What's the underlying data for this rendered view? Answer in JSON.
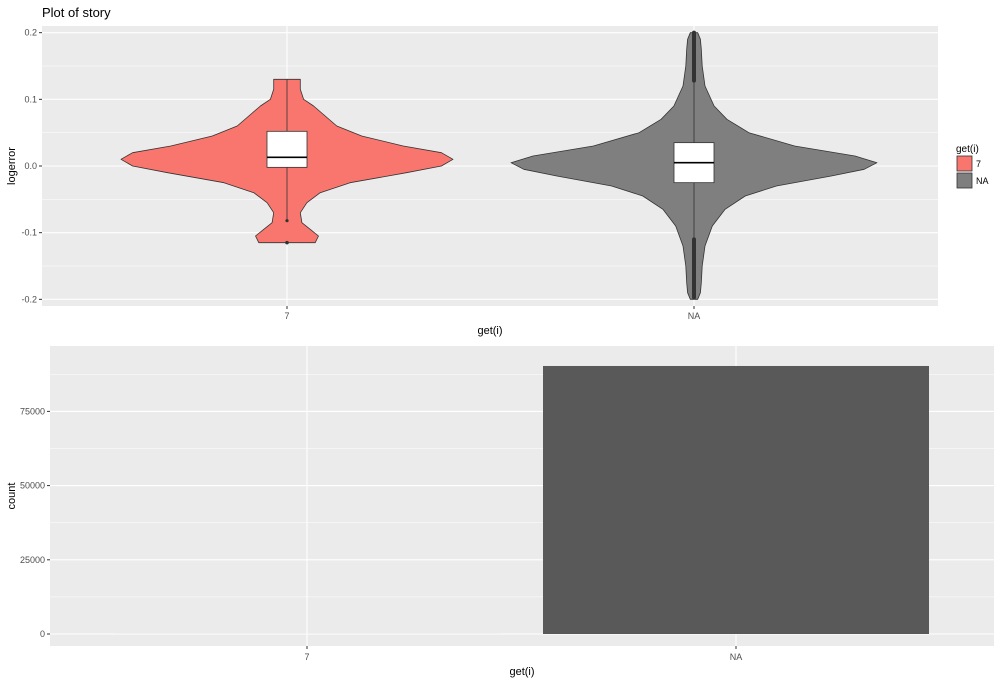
{
  "colors": {
    "panel": "#ebebeb",
    "grid": "#ffffff",
    "fill_7": "#f8766d",
    "fill_NA": "#7f7f7f",
    "bar": "#595959",
    "outline": "#333333",
    "box": "#ffffff"
  },
  "chart_data": [
    {
      "type": "violin",
      "title": "Plot of story",
      "xlabel": "get(i)",
      "ylabel": "logerror",
      "categories": [
        "7",
        "NA"
      ],
      "y_ticks": [
        {
          "value": 0.2,
          "label": "0.2"
        },
        {
          "value": 0.1,
          "label": "0.1"
        },
        {
          "value": 0.0,
          "label": "0.0"
        },
        {
          "value": -0.1,
          "label": "-0.1"
        },
        {
          "value": -0.2,
          "label": "-0.2"
        }
      ],
      "ylim": [
        -0.21,
        0.21
      ],
      "grid": true,
      "legend": {
        "title": "get(i)",
        "position": "right",
        "entries": [
          {
            "label": "7",
            "color": "#f8766d"
          },
          {
            "label": "NA",
            "color": "#7f7f7f"
          }
        ]
      },
      "series": [
        {
          "category": "7",
          "range": [
            -0.115,
            0.13
          ],
          "box": {
            "q1": -0.002,
            "median": 0.013,
            "q3": 0.052,
            "whisker_low": -0.082,
            "whisker_high": 0.13
          },
          "outliers": [
            -0.115
          ],
          "density": [
            [
              -0.115,
              0.17
            ],
            [
              -0.105,
              0.19
            ],
            [
              -0.095,
              0.14
            ],
            [
              -0.085,
              0.09
            ],
            [
              -0.07,
              0.08
            ],
            [
              -0.055,
              0.12
            ],
            [
              -0.04,
              0.2
            ],
            [
              -0.025,
              0.38
            ],
            [
              -0.01,
              0.72
            ],
            [
              0.0,
              0.93
            ],
            [
              0.01,
              1.0
            ],
            [
              0.02,
              0.93
            ],
            [
              0.03,
              0.7
            ],
            [
              0.045,
              0.45
            ],
            [
              0.06,
              0.3
            ],
            [
              0.075,
              0.23
            ],
            [
              0.09,
              0.16
            ],
            [
              0.1,
              0.1
            ],
            [
              0.115,
              0.08
            ],
            [
              0.13,
              0.08
            ]
          ]
        },
        {
          "category": "NA",
          "range": [
            -0.2,
            0.2
          ],
          "box": {
            "q1": -0.025,
            "median": 0.005,
            "q3": 0.035,
            "whisker_low": -0.11,
            "whisker_high": 0.125
          },
          "outlier_bands": [
            [
              -0.2,
              -0.11
            ],
            [
              0.125,
              0.2
            ]
          ],
          "density": [
            [
              -0.2,
              0.02
            ],
            [
              -0.19,
              0.035
            ],
            [
              -0.175,
              0.04
            ],
            [
              -0.15,
              0.045
            ],
            [
              -0.12,
              0.06
            ],
            [
              -0.09,
              0.1
            ],
            [
              -0.065,
              0.17
            ],
            [
              -0.045,
              0.28
            ],
            [
              -0.03,
              0.45
            ],
            [
              -0.015,
              0.75
            ],
            [
              -0.005,
              0.93
            ],
            [
              0.005,
              1.0
            ],
            [
              0.015,
              0.88
            ],
            [
              0.03,
              0.55
            ],
            [
              0.05,
              0.3
            ],
            [
              0.07,
              0.18
            ],
            [
              0.09,
              0.11
            ],
            [
              0.12,
              0.06
            ],
            [
              0.15,
              0.045
            ],
            [
              0.175,
              0.04
            ],
            [
              0.19,
              0.035
            ],
            [
              0.2,
              0.02
            ]
          ]
        }
      ]
    },
    {
      "type": "bar",
      "xlabel": "get(i)",
      "ylabel": "count",
      "categories": [
        "7",
        "NA"
      ],
      "values": [
        5,
        90300
      ],
      "y_ticks": [
        {
          "value": 0,
          "label": "0"
        },
        {
          "value": 25000,
          "label": "25000"
        },
        {
          "value": 50000,
          "label": "50000"
        },
        {
          "value": 75000,
          "label": "75000"
        }
      ],
      "ylim": [
        0,
        94000
      ],
      "grid": true
    }
  ]
}
